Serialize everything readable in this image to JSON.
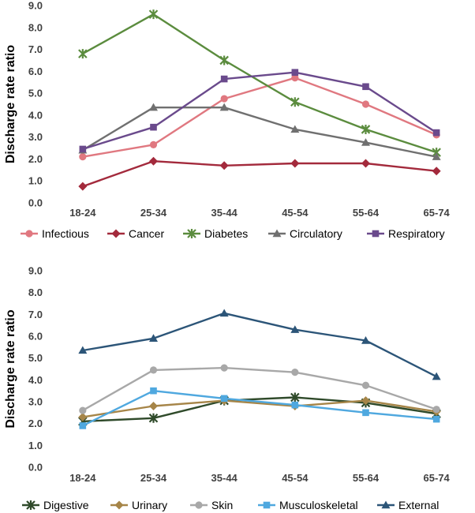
{
  "chart_data": [
    {
      "type": "line",
      "title": "",
      "xlabel": "",
      "ylabel": "Discharge rate ratio",
      "ylim": [
        0,
        9
      ],
      "yticks": [
        "0.0",
        "1.0",
        "2.0",
        "3.0",
        "4.0",
        "5.0",
        "6.0",
        "7.0",
        "8.0",
        "9.0"
      ],
      "categories": [
        "18-24",
        "25-34",
        "35-44",
        "45-54",
        "55-64",
        "65-74"
      ],
      "grid": false,
      "legend": "bottom",
      "series": [
        {
          "name": "Infectious",
          "color": "#e07880",
          "marker": "circle",
          "values": [
            2.1,
            2.65,
            4.75,
            5.7,
            4.5,
            3.1
          ]
        },
        {
          "name": "Cancer",
          "color": "#a32a3c",
          "marker": "diamond",
          "values": [
            0.75,
            1.9,
            1.7,
            1.8,
            1.8,
            1.45
          ]
        },
        {
          "name": "Diabetes",
          "color": "#5b8c3e",
          "marker": "x-star",
          "values": [
            6.8,
            8.6,
            6.5,
            4.6,
            3.35,
            2.3
          ]
        },
        {
          "name": "Circulatory",
          "color": "#707070",
          "marker": "triangle",
          "values": [
            2.4,
            4.35,
            4.35,
            3.35,
            2.75,
            2.1
          ]
        },
        {
          "name": "Respiratory",
          "color": "#6a4a8c",
          "marker": "square",
          "values": [
            2.45,
            3.45,
            5.65,
            5.95,
            5.3,
            3.2
          ]
        }
      ]
    },
    {
      "type": "line",
      "title": "",
      "xlabel": "",
      "ylabel": "Discharge rate ratio",
      "ylim": [
        0,
        9
      ],
      "yticks": [
        "0.0",
        "1.0",
        "2.0",
        "3.0",
        "4.0",
        "5.0",
        "6.0",
        "7.0",
        "8.0",
        "9.0"
      ],
      "categories": [
        "18-24",
        "25-34",
        "35-44",
        "45-54",
        "55-64",
        "65-74"
      ],
      "grid": false,
      "legend": "bottom",
      "series": [
        {
          "name": "Digestive",
          "color": "#2f4a2a",
          "marker": "x-star",
          "values": [
            2.1,
            2.25,
            3.05,
            3.2,
            2.95,
            2.45
          ]
        },
        {
          "name": "Urinary",
          "color": "#a68548",
          "marker": "diamond",
          "values": [
            2.3,
            2.8,
            3.05,
            2.8,
            3.05,
            2.55
          ]
        },
        {
          "name": "Skin",
          "color": "#a8a8a8",
          "marker": "circle",
          "values": [
            2.6,
            4.45,
            4.55,
            4.35,
            3.75,
            2.65
          ]
        },
        {
          "name": "Musculoskeletal",
          "color": "#4fa8df",
          "marker": "square",
          "values": [
            1.9,
            3.5,
            3.15,
            2.85,
            2.5,
            2.2
          ]
        },
        {
          "name": "External",
          "color": "#2c5578",
          "marker": "triangle",
          "values": [
            5.35,
            5.9,
            7.05,
            6.3,
            5.8,
            4.15
          ]
        }
      ]
    }
  ]
}
